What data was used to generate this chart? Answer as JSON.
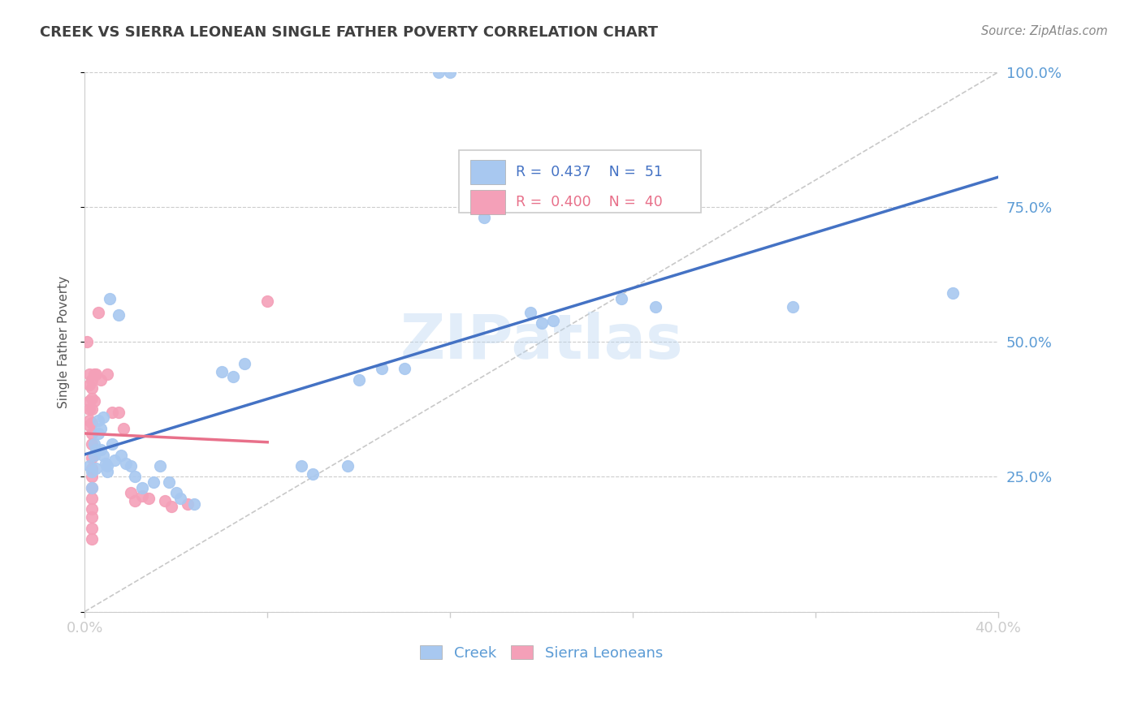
{
  "title": "CREEK VS SIERRA LEONEAN SINGLE FATHER POVERTY CORRELATION CHART",
  "source": "Source: ZipAtlas.com",
  "ylabel_label": "Single Father Poverty",
  "xlim": [
    0.0,
    0.4
  ],
  "ylim": [
    0.0,
    1.0
  ],
  "x_ticks": [
    0.0,
    0.08,
    0.16,
    0.24,
    0.32,
    0.4
  ],
  "x_tick_labels": [
    "0.0%",
    "",
    "",
    "",
    "",
    "40.0%"
  ],
  "y_ticks": [
    0.0,
    0.25,
    0.5,
    0.75,
    1.0
  ],
  "y_tick_labels": [
    "",
    "25.0%",
    "50.0%",
    "75.0%",
    "100.0%"
  ],
  "creek_color": "#A8C8F0",
  "sierra_color": "#F4A0B8",
  "creek_line_color": "#4472C4",
  "sierra_line_color": "#E8708A",
  "diagonal_color": "#BBBBBB",
  "watermark": "ZIPatlas",
  "background_color": "#FFFFFF",
  "grid_color": "#CCCCCC",
  "axis_color": "#5B9BD5",
  "title_color": "#404040",
  "creek_points": [
    [
      0.002,
      0.27
    ],
    [
      0.003,
      0.26
    ],
    [
      0.003,
      0.23
    ],
    [
      0.004,
      0.31
    ],
    [
      0.004,
      0.29
    ],
    [
      0.005,
      0.3
    ],
    [
      0.005,
      0.265
    ],
    [
      0.006,
      0.355
    ],
    [
      0.006,
      0.33
    ],
    [
      0.007,
      0.34
    ],
    [
      0.007,
      0.3
    ],
    [
      0.008,
      0.36
    ],
    [
      0.008,
      0.29
    ],
    [
      0.009,
      0.275
    ],
    [
      0.01,
      0.27
    ],
    [
      0.01,
      0.26
    ],
    [
      0.011,
      0.58
    ],
    [
      0.012,
      0.31
    ],
    [
      0.013,
      0.28
    ],
    [
      0.015,
      0.55
    ],
    [
      0.016,
      0.29
    ],
    [
      0.018,
      0.275
    ],
    [
      0.02,
      0.27
    ],
    [
      0.022,
      0.25
    ],
    [
      0.025,
      0.23
    ],
    [
      0.03,
      0.24
    ],
    [
      0.033,
      0.27
    ],
    [
      0.037,
      0.24
    ],
    [
      0.04,
      0.22
    ],
    [
      0.042,
      0.21
    ],
    [
      0.048,
      0.2
    ],
    [
      0.06,
      0.445
    ],
    [
      0.065,
      0.435
    ],
    [
      0.07,
      0.46
    ],
    [
      0.095,
      0.27
    ],
    [
      0.1,
      0.255
    ],
    [
      0.115,
      0.27
    ],
    [
      0.12,
      0.43
    ],
    [
      0.13,
      0.45
    ],
    [
      0.14,
      0.45
    ],
    [
      0.155,
      1.0
    ],
    [
      0.16,
      1.0
    ],
    [
      0.175,
      0.73
    ],
    [
      0.195,
      0.555
    ],
    [
      0.2,
      0.535
    ],
    [
      0.205,
      0.54
    ],
    [
      0.235,
      0.58
    ],
    [
      0.25,
      0.565
    ],
    [
      0.31,
      0.565
    ],
    [
      0.38,
      0.59
    ]
  ],
  "sierra_points": [
    [
      0.001,
      0.5
    ],
    [
      0.002,
      0.44
    ],
    [
      0.002,
      0.42
    ],
    [
      0.002,
      0.39
    ],
    [
      0.002,
      0.375
    ],
    [
      0.002,
      0.355
    ],
    [
      0.002,
      0.345
    ],
    [
      0.003,
      0.43
    ],
    [
      0.003,
      0.415
    ],
    [
      0.003,
      0.395
    ],
    [
      0.003,
      0.375
    ],
    [
      0.003,
      0.35
    ],
    [
      0.003,
      0.33
    ],
    [
      0.003,
      0.31
    ],
    [
      0.003,
      0.285
    ],
    [
      0.003,
      0.265
    ],
    [
      0.003,
      0.25
    ],
    [
      0.003,
      0.23
    ],
    [
      0.003,
      0.21
    ],
    [
      0.003,
      0.19
    ],
    [
      0.003,
      0.175
    ],
    [
      0.003,
      0.155
    ],
    [
      0.003,
      0.135
    ],
    [
      0.004,
      0.44
    ],
    [
      0.004,
      0.39
    ],
    [
      0.005,
      0.44
    ],
    [
      0.006,
      0.555
    ],
    [
      0.007,
      0.43
    ],
    [
      0.01,
      0.44
    ],
    [
      0.012,
      0.37
    ],
    [
      0.015,
      0.37
    ],
    [
      0.017,
      0.34
    ],
    [
      0.02,
      0.22
    ],
    [
      0.022,
      0.205
    ],
    [
      0.025,
      0.215
    ],
    [
      0.028,
      0.21
    ],
    [
      0.035,
      0.205
    ],
    [
      0.038,
      0.195
    ],
    [
      0.045,
      0.2
    ],
    [
      0.08,
      0.575
    ]
  ]
}
